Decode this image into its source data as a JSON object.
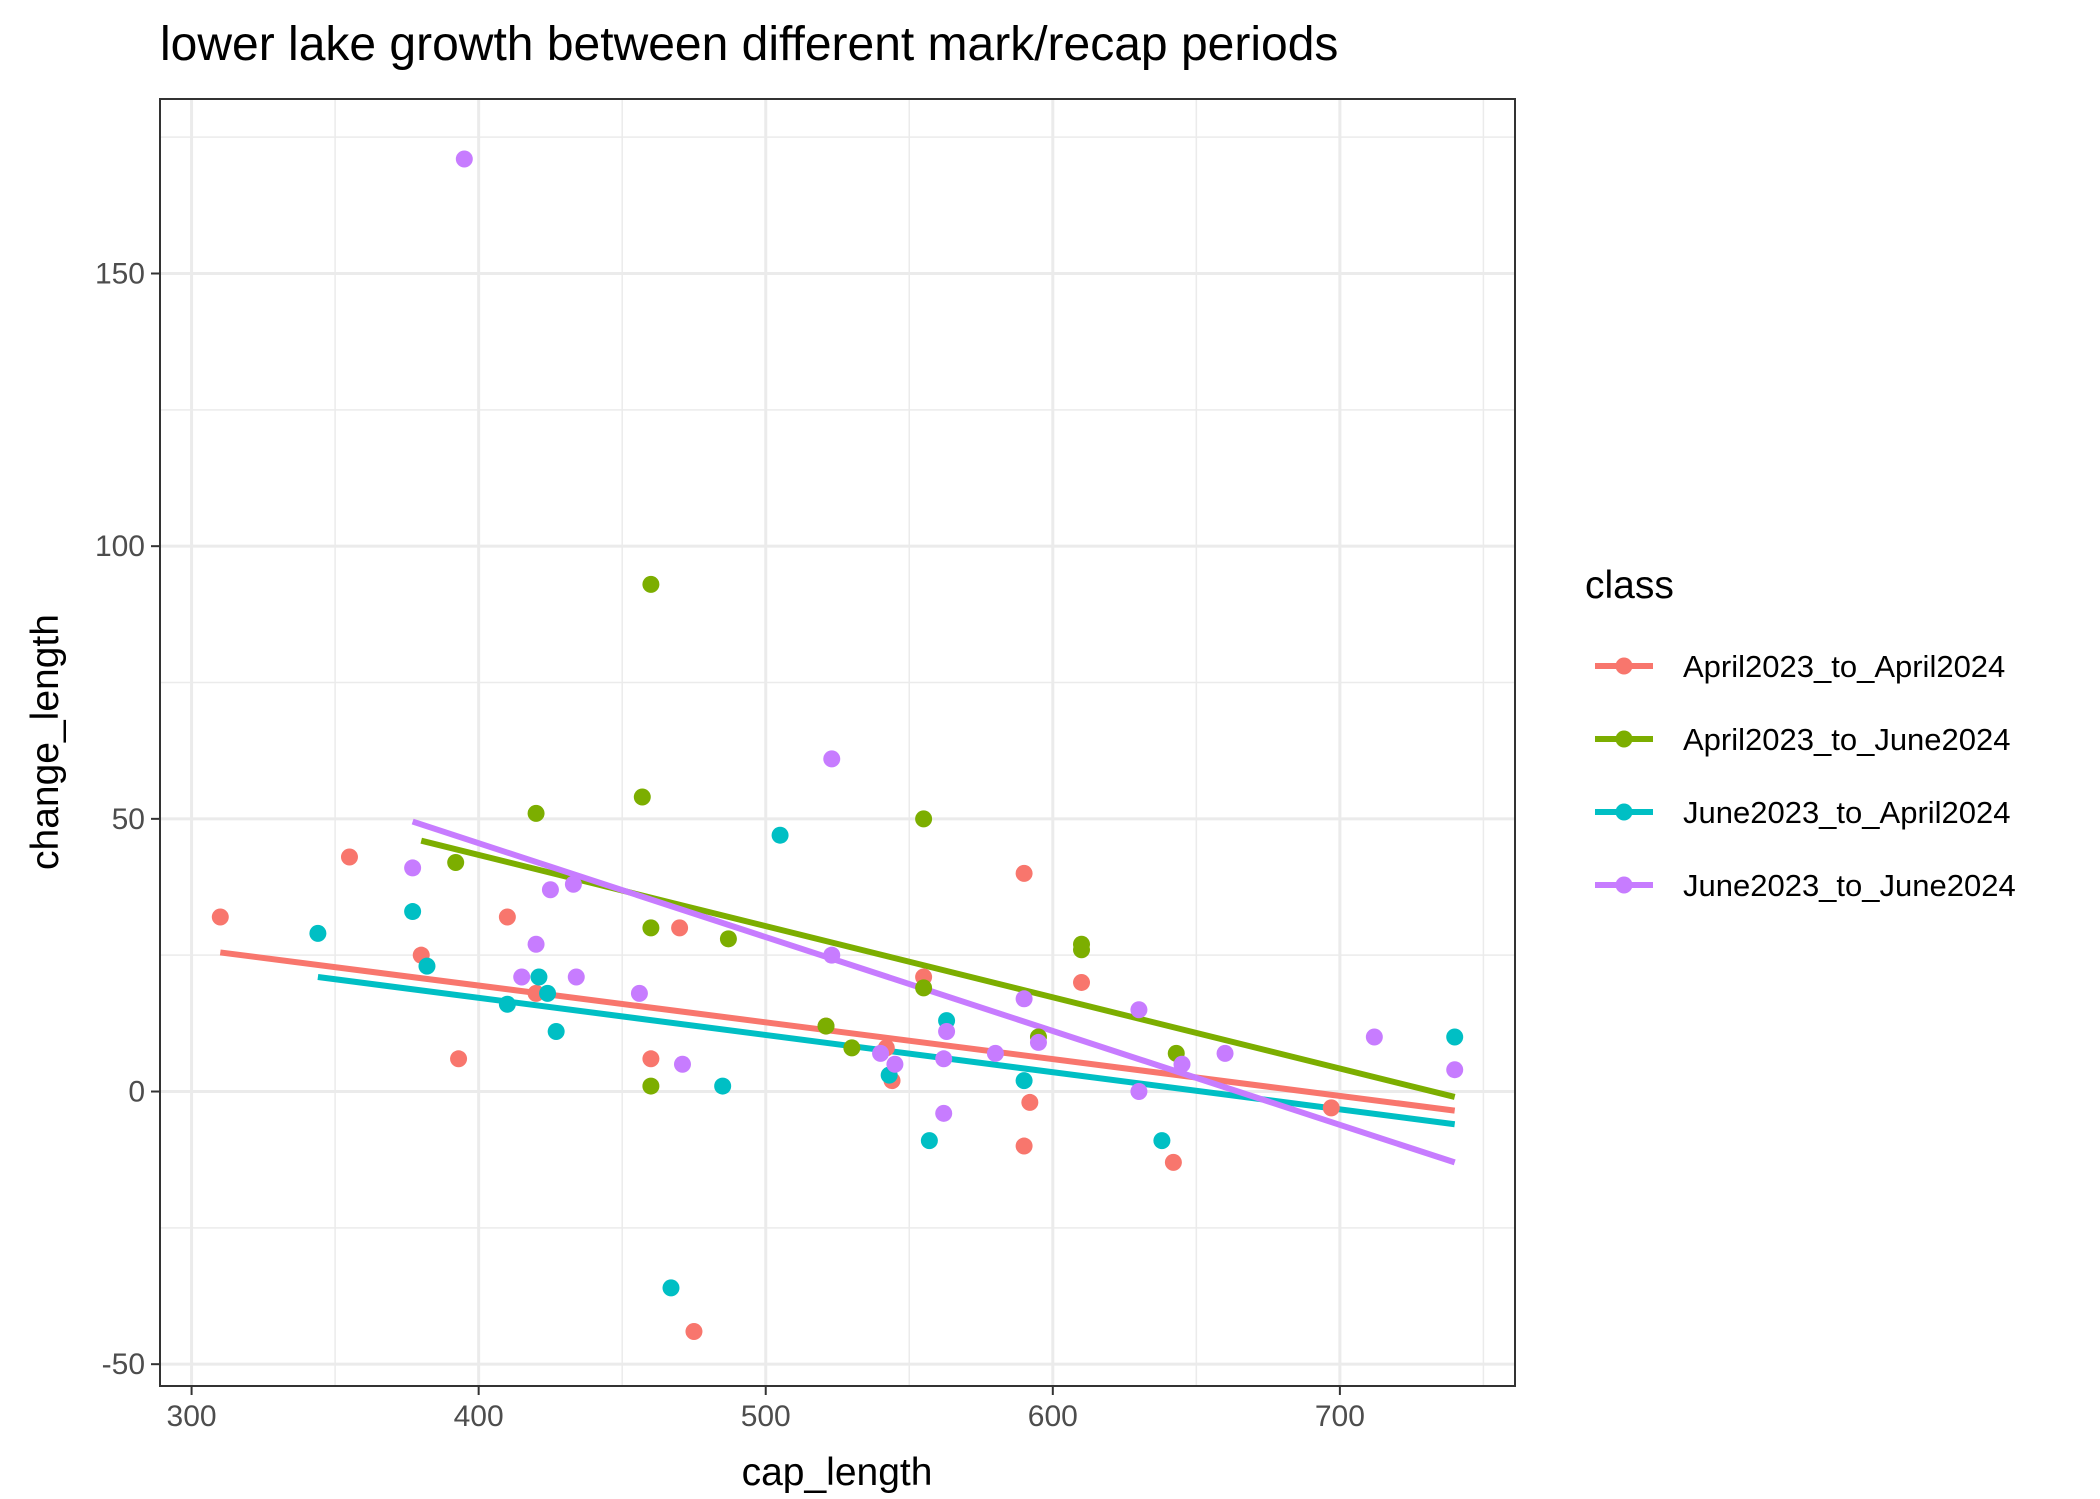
{
  "chart_data": {
    "type": "scatter",
    "title": "lower lake growth between different mark/recap periods",
    "xlabel": "cap_length",
    "ylabel": "change_length",
    "xlim": [
      289,
      761
    ],
    "ylim": [
      -54,
      182
    ],
    "x_ticks": [
      300,
      400,
      500,
      600,
      700
    ],
    "y_ticks": [
      -50,
      0,
      50,
      100,
      150
    ],
    "x_tick_labels": [
      "300",
      "400",
      "500",
      "600",
      "700"
    ],
    "y_tick_labels": [
      "-50",
      "0",
      "50",
      "100",
      "150"
    ],
    "grid": true,
    "legend_title": "class",
    "legend_position": "right",
    "series": [
      {
        "name": "April2023_to_April2024",
        "color": "#F8766D",
        "points": [
          [
            310,
            32
          ],
          [
            355,
            43
          ],
          [
            380,
            25
          ],
          [
            393,
            6
          ],
          [
            410,
            32
          ],
          [
            420,
            18
          ],
          [
            460,
            6
          ],
          [
            470,
            30
          ],
          [
            475,
            -44
          ],
          [
            521,
            12
          ],
          [
            555,
            21
          ],
          [
            542,
            8
          ],
          [
            544,
            2
          ],
          [
            590,
            40
          ],
          [
            592,
            -2
          ],
          [
            590,
            -10
          ],
          [
            610,
            20
          ],
          [
            642,
            -13
          ],
          [
            697,
            -3
          ]
        ],
        "fit": [
          [
            310,
            25.5
          ],
          [
            740,
            -3.5
          ]
        ]
      },
      {
        "name": "April2023_to_June2024",
        "color": "#7CAE00",
        "points": [
          [
            392,
            42
          ],
          [
            420,
            51
          ],
          [
            457,
            54
          ],
          [
            460,
            93
          ],
          [
            460,
            30
          ],
          [
            460,
            1
          ],
          [
            487,
            28
          ],
          [
            521,
            12
          ],
          [
            530,
            8
          ],
          [
            555,
            50
          ],
          [
            555,
            19
          ],
          [
            595,
            10
          ],
          [
            610,
            27
          ],
          [
            610,
            26
          ],
          [
            643,
            7
          ]
        ],
        "fit": [
          [
            380,
            46
          ],
          [
            740,
            -1
          ]
        ]
      },
      {
        "name": "June2023_to_April2024",
        "color": "#00BFC4",
        "points": [
          [
            344,
            29
          ],
          [
            377,
            33
          ],
          [
            382,
            23
          ],
          [
            410,
            16
          ],
          [
            421,
            21
          ],
          [
            424,
            18
          ],
          [
            427,
            11
          ],
          [
            467,
            -36
          ],
          [
            485,
            1
          ],
          [
            505,
            47
          ],
          [
            543,
            3
          ],
          [
            557,
            -9
          ],
          [
            563,
            13
          ],
          [
            590,
            2
          ],
          [
            638,
            -9
          ],
          [
            740,
            10
          ]
        ],
        "fit": [
          [
            344,
            21
          ],
          [
            740,
            -6
          ]
        ]
      },
      {
        "name": "June2023_to_June2024",
        "color": "#C77CFF",
        "points": [
          [
            395,
            171
          ],
          [
            377,
            41
          ],
          [
            415,
            21
          ],
          [
            420,
            27
          ],
          [
            425,
            37
          ],
          [
            433,
            38
          ],
          [
            434,
            21
          ],
          [
            456,
            18
          ],
          [
            471,
            5
          ],
          [
            523,
            61
          ],
          [
            523,
            25
          ],
          [
            540,
            7
          ],
          [
            545,
            5
          ],
          [
            562,
            6
          ],
          [
            562,
            -4
          ],
          [
            563,
            11
          ],
          [
            580,
            7
          ],
          [
            590,
            17
          ],
          [
            595,
            9
          ],
          [
            630,
            15
          ],
          [
            630,
            0
          ],
          [
            645,
            5
          ],
          [
            660,
            7
          ],
          [
            712,
            10
          ],
          [
            740,
            4
          ]
        ],
        "fit": [
          [
            377,
            49.5
          ],
          [
            740,
            -13
          ]
        ]
      }
    ]
  }
}
